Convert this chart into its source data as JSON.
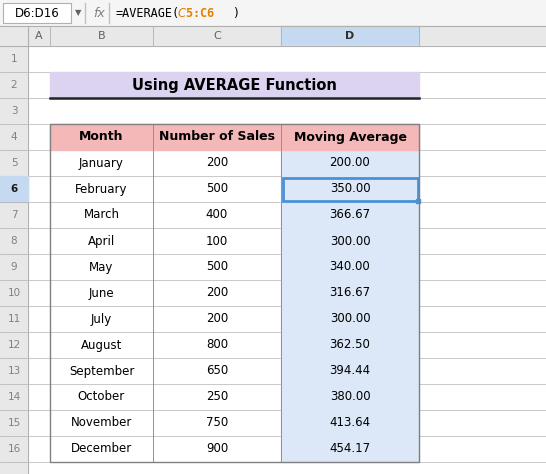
{
  "formula_bar_cell": "D6:D16",
  "formula_bar_formula": "=AVERAGE(",
  "formula_bar_ref": "$C$5:C6",
  "formula_bar_end": ")",
  "title": "Using AVERAGE Function",
  "title_bg": "#dcd3f0",
  "header_bg": "#f4b8b8",
  "col_headers": [
    "Month",
    "Number of Sales",
    "Moving Average"
  ],
  "months": [
    "January",
    "February",
    "March",
    "April",
    "May",
    "June",
    "July",
    "August",
    "September",
    "October",
    "November",
    "December"
  ],
  "sales": [
    200,
    500,
    400,
    100,
    500,
    200,
    200,
    800,
    650,
    250,
    750,
    900
  ],
  "moving_avg": [
    "200.00",
    "350.00",
    "366.67",
    "300.00",
    "340.00",
    "316.67",
    "300.00",
    "362.50",
    "394.44",
    "380.00",
    "413.64",
    "454.17"
  ],
  "selected_row_idx": 1,
  "data_col_bg": "#dce8f8",
  "selected_cell_border": "#4a90d9",
  "grid_line_color": "#c0c0c0",
  "col_label_color": "#606060",
  "row_number_color": "#808080",
  "sheet_bg": "#f0f0f0",
  "cell_bg": "#ffffff",
  "formula_orange": "#e67e00",
  "formula_bar_bg": "#f5f5f5",
  "col_hdr_bg": "#e8e8e8",
  "row_hdr_bg": "#e8e8e8",
  "selected_col_hdr_bg": "#c5d9f1",
  "selected_row_hdr_bg": "#c5d9f1"
}
